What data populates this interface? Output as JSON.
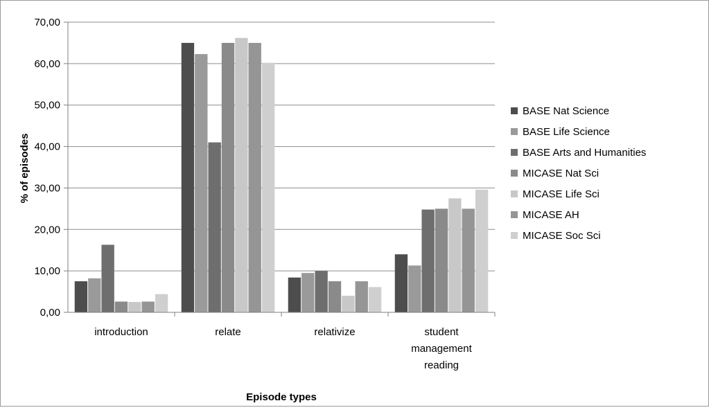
{
  "chart_data": {
    "type": "bar",
    "title": "",
    "xlabel": "Episode types",
    "ylabel": "% of episodes",
    "ylim": [
      0,
      70
    ],
    "yticks": [
      "0,00",
      "10,00",
      "20,00",
      "30,00",
      "40,00",
      "50,00",
      "60,00",
      "70,00"
    ],
    "grid": true,
    "legend_position": "right",
    "categories": [
      "introduction",
      "relate",
      "relativize",
      "student management reading"
    ],
    "category_lines": [
      [
        "introduction"
      ],
      [
        "relate"
      ],
      [
        "relativize"
      ],
      [
        "student",
        "management",
        "reading"
      ]
    ],
    "series": [
      {
        "name": "BASE Nat Science",
        "color": "#4d4d4d",
        "values": [
          7.5,
          65.0,
          8.4,
          14.0
        ]
      },
      {
        "name": "BASE Life Science",
        "color": "#9a9a9a",
        "values": [
          8.2,
          62.3,
          9.5,
          11.3
        ]
      },
      {
        "name": "BASE Arts and Humanities",
        "color": "#6e6e6e",
        "values": [
          16.3,
          41.0,
          10.0,
          24.8
        ]
      },
      {
        "name": "MICASE Nat Sci",
        "color": "#8a8a8a",
        "values": [
          2.6,
          65.0,
          7.5,
          25.0
        ]
      },
      {
        "name": "MICASE Life Sci",
        "color": "#c8c8c8",
        "values": [
          2.5,
          66.2,
          4.0,
          27.5
        ]
      },
      {
        "name": "MICASE AH",
        "color": "#959595",
        "values": [
          2.6,
          65.0,
          7.5,
          25.0
        ]
      },
      {
        "name": "MICASE Soc Sci",
        "color": "#cfcfcf",
        "values": [
          4.4,
          60.2,
          6.1,
          29.6
        ]
      }
    ]
  }
}
